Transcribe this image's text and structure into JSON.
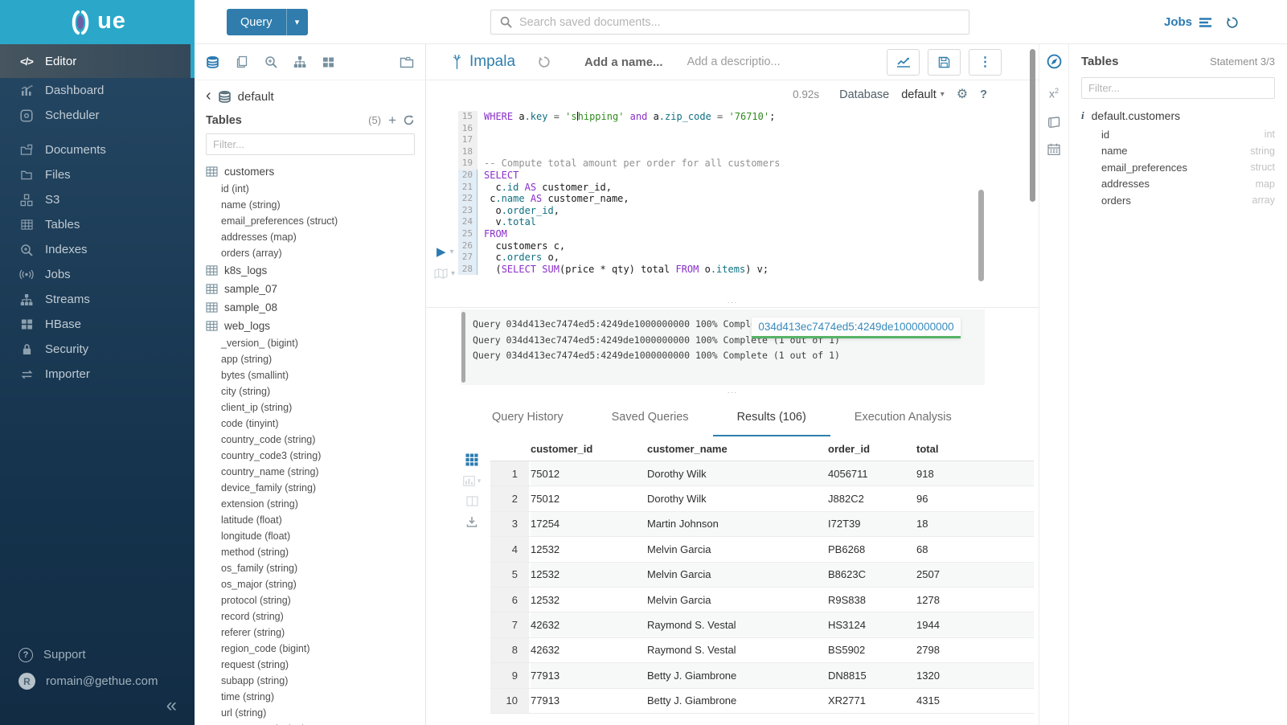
{
  "colors": {
    "brand_teal": "#2ba8c9",
    "accent_blue": "#338bb8",
    "sidebar_bg": "#1d3d58",
    "sql_keyword": "#8a2fc9",
    "sql_string": "#318a1f",
    "sql_comment": "#919191",
    "sql_member": "#0f7080",
    "tooltip_underline_green": "#57b368",
    "active_tab_underline": "#2f80ad"
  },
  "topbar": {
    "brand_text": "ue",
    "query_button_label": "Query",
    "search_placeholder": "Search saved documents...",
    "jobs_label": "Jobs"
  },
  "sidebar": {
    "items": [
      {
        "label": "Editor",
        "icon": "code",
        "class": "active"
      },
      {
        "label": "Dashboard",
        "icon": "dashboard"
      },
      {
        "label": "Scheduler",
        "icon": "scheduler"
      },
      {
        "label": "Documents",
        "icon": "documents",
        "class": "group-start"
      },
      {
        "label": "Files",
        "icon": "files"
      },
      {
        "label": "S3",
        "icon": "s3"
      },
      {
        "label": "Tables",
        "icon": "table"
      },
      {
        "label": "Indexes",
        "icon": "search-plus"
      },
      {
        "label": "Jobs",
        "icon": "broadcast"
      },
      {
        "label": "Streams",
        "icon": "sitemap"
      },
      {
        "label": "HBase",
        "icon": "hbase"
      },
      {
        "label": "Security",
        "icon": "lock"
      },
      {
        "label": "Importer",
        "icon": "swap"
      }
    ],
    "support_label": "Support",
    "avatar_initial": "R",
    "user_email": "romain@gethue.com"
  },
  "assist": {
    "database_name": "default",
    "tables_label": "Tables",
    "tables_count": "(5)",
    "filter_placeholder": "Filter...",
    "tree": [
      {
        "label": "customers",
        "class": "table",
        "icon": "table"
      },
      {
        "label": "id (int)",
        "class": "column"
      },
      {
        "label": "name (string)",
        "class": "column"
      },
      {
        "label": "email_preferences (struct)",
        "class": "column"
      },
      {
        "label": "addresses (map)",
        "class": "column"
      },
      {
        "label": "orders (array)",
        "class": "column"
      },
      {
        "label": "k8s_logs",
        "class": "table",
        "icon": "table"
      },
      {
        "label": "sample_07",
        "class": "table",
        "icon": "table"
      },
      {
        "label": "sample_08",
        "class": "table",
        "icon": "table"
      },
      {
        "label": "web_logs",
        "class": "table",
        "icon": "table"
      },
      {
        "label": "_version_ (bigint)",
        "class": "column"
      },
      {
        "label": "app (string)",
        "class": "column"
      },
      {
        "label": "bytes (smallint)",
        "class": "column"
      },
      {
        "label": "city (string)",
        "class": "column"
      },
      {
        "label": "client_ip (string)",
        "class": "column"
      },
      {
        "label": "code (tinyint)",
        "class": "column"
      },
      {
        "label": "country_code (string)",
        "class": "column"
      },
      {
        "label": "country_code3 (string)",
        "class": "column"
      },
      {
        "label": "country_name (string)",
        "class": "column"
      },
      {
        "label": "device_family (string)",
        "class": "column"
      },
      {
        "label": "extension (string)",
        "class": "column"
      },
      {
        "label": "latitude (float)",
        "class": "column"
      },
      {
        "label": "longitude (float)",
        "class": "column"
      },
      {
        "label": "method (string)",
        "class": "column"
      },
      {
        "label": "os_family (string)",
        "class": "column"
      },
      {
        "label": "os_major (string)",
        "class": "column"
      },
      {
        "label": "protocol (string)",
        "class": "column"
      },
      {
        "label": "record (string)",
        "class": "column"
      },
      {
        "label": "referer (string)",
        "class": "column"
      },
      {
        "label": "region_code (bigint)",
        "class": "column"
      },
      {
        "label": "request (string)",
        "class": "column"
      },
      {
        "label": "subapp (string)",
        "class": "column"
      },
      {
        "label": "time (string)",
        "class": "column"
      },
      {
        "label": "url (string)",
        "class": "column"
      },
      {
        "label": "user_agent (string)",
        "class": "column"
      }
    ]
  },
  "editor": {
    "engine_label": "Impala",
    "name_placeholder": "Add a name...",
    "description_placeholder": "Add a descriptio...",
    "exec_time": "0.92s",
    "database_label": "Database",
    "database_value": "default",
    "code_lines": [
      {
        "n": "15",
        "active": false,
        "tokens": [
          [
            "k",
            "WHERE"
          ],
          [
            "t",
            " a"
          ],
          [
            "m",
            ".key"
          ],
          [
            "o",
            " = "
          ],
          [
            "s",
            "'s"
          ],
          [
            "caret",
            ""
          ],
          [
            "s",
            "hipping'"
          ],
          [
            "t",
            " "
          ],
          [
            "k",
            "and"
          ],
          [
            "t",
            " a"
          ],
          [
            "m",
            ".zip_code"
          ],
          [
            "o",
            " = "
          ],
          [
            "s",
            "'76710'"
          ],
          [
            "t",
            ";"
          ]
        ]
      },
      {
        "n": "16",
        "active": false,
        "tokens": []
      },
      {
        "n": "17",
        "active": false,
        "tokens": []
      },
      {
        "n": "18",
        "active": false,
        "tokens": []
      },
      {
        "n": "19",
        "active": false,
        "tokens": [
          [
            "c",
            "-- Compute total amount per order for all customers"
          ]
        ]
      },
      {
        "n": "20",
        "active": true,
        "tokens": [
          [
            "k",
            "SELECT"
          ]
        ]
      },
      {
        "n": "21",
        "active": true,
        "tokens": [
          [
            "t",
            "  c"
          ],
          [
            "m",
            ".id"
          ],
          [
            "t",
            " "
          ],
          [
            "k",
            "AS"
          ],
          [
            "t",
            " customer_id,"
          ]
        ]
      },
      {
        "n": "22",
        "active": true,
        "tokens": [
          [
            "t",
            " c"
          ],
          [
            "m",
            ".name"
          ],
          [
            "t",
            " "
          ],
          [
            "k",
            "AS"
          ],
          [
            "t",
            " customer_name,"
          ]
        ]
      },
      {
        "n": "23",
        "active": true,
        "tokens": [
          [
            "t",
            "  o"
          ],
          [
            "m",
            ".order_id"
          ],
          [
            "t",
            ","
          ]
        ]
      },
      {
        "n": "24",
        "active": true,
        "tokens": [
          [
            "t",
            "  v"
          ],
          [
            "m",
            ".total"
          ]
        ]
      },
      {
        "n": "25",
        "active": true,
        "tokens": [
          [
            "k",
            "FROM"
          ]
        ]
      },
      {
        "n": "26",
        "active": true,
        "tokens": [
          [
            "t",
            "  customers c,"
          ]
        ]
      },
      {
        "n": "27",
        "active": true,
        "tokens": [
          [
            "t",
            "  c"
          ],
          [
            "m",
            ".orders"
          ],
          [
            "t",
            " o,"
          ]
        ]
      },
      {
        "n": "28",
        "active": true,
        "tokens": [
          [
            "t",
            "  ("
          ],
          [
            "k",
            "SELECT"
          ],
          [
            "t",
            " "
          ],
          [
            "k",
            "SUM"
          ],
          [
            "t",
            "(price * qty) total "
          ],
          [
            "k",
            "FROM"
          ],
          [
            "t",
            " o"
          ],
          [
            "m",
            ".items"
          ],
          [
            "t",
            ") v;"
          ]
        ]
      }
    ],
    "log": {
      "lines": [
        {
          "text": "Query 034d413ec7474ed5:4249de1000000000 100% Complete (1 out of 1)"
        },
        {
          "text": "Query 034d413ec7474ed5:4249de1000000000 100% Complete (1 out of 1)"
        },
        {
          "text": "Query 034d413ec7474ed5:4249de1000000000 100% Complete (1 out of 1)"
        }
      ],
      "tooltip_text": "034d413ec7474ed5:4249de1000000000"
    },
    "tabs": [
      {
        "label": "Query History"
      },
      {
        "label": "Saved Queries"
      },
      {
        "label": "Results (106)",
        "class": "active"
      },
      {
        "label": "Execution Analysis"
      }
    ],
    "results": {
      "columns": [
        {
          "label": "customer_id",
          "class": "c1"
        },
        {
          "label": "customer_name",
          "class": "c2"
        },
        {
          "label": "order_id",
          "class": "c3"
        },
        {
          "label": "total",
          "class": "c4"
        }
      ],
      "rows": [
        {
          "n": "1",
          "customer_id": "75012",
          "customer_name": "Dorothy Wilk",
          "order_id": "4056711",
          "total": "918"
        },
        {
          "n": "2",
          "customer_id": "75012",
          "customer_name": "Dorothy Wilk",
          "order_id": "J882C2",
          "total": "96"
        },
        {
          "n": "3",
          "customer_id": "17254",
          "customer_name": "Martin Johnson",
          "order_id": "I72T39",
          "total": "18"
        },
        {
          "n": "4",
          "customer_id": "12532",
          "customer_name": "Melvin Garcia",
          "order_id": "PB6268",
          "total": "68"
        },
        {
          "n": "5",
          "customer_id": "12532",
          "customer_name": "Melvin Garcia",
          "order_id": "B8623C",
          "total": "2507"
        },
        {
          "n": "6",
          "customer_id": "12532",
          "customer_name": "Melvin Garcia",
          "order_id": "R9S838",
          "total": "1278"
        },
        {
          "n": "7",
          "customer_id": "42632",
          "customer_name": "Raymond S. Vestal",
          "order_id": "HS3124",
          "total": "1944"
        },
        {
          "n": "8",
          "customer_id": "42632",
          "customer_name": "Raymond S. Vestal",
          "order_id": "BS5902",
          "total": "2798"
        },
        {
          "n": "9",
          "customer_id": "77913",
          "customer_name": "Betty J. Giambrone",
          "order_id": "DN8815",
          "total": "1320"
        },
        {
          "n": "10",
          "customer_id": "77913",
          "customer_name": "Betty J. Giambrone",
          "order_id": "XR2771",
          "total": "4315"
        }
      ]
    }
  },
  "right_panel": {
    "tables_label": "Tables",
    "statement_label": "Statement 3/3",
    "filter_placeholder": "Filter...",
    "table_name": "default.customers",
    "columns": [
      {
        "name": "id",
        "type": "int"
      },
      {
        "name": "name",
        "type": "string"
      },
      {
        "name": "email_preferences",
        "type": "struct"
      },
      {
        "name": "addresses",
        "type": "map"
      },
      {
        "name": "orders",
        "type": "array"
      }
    ]
  }
}
